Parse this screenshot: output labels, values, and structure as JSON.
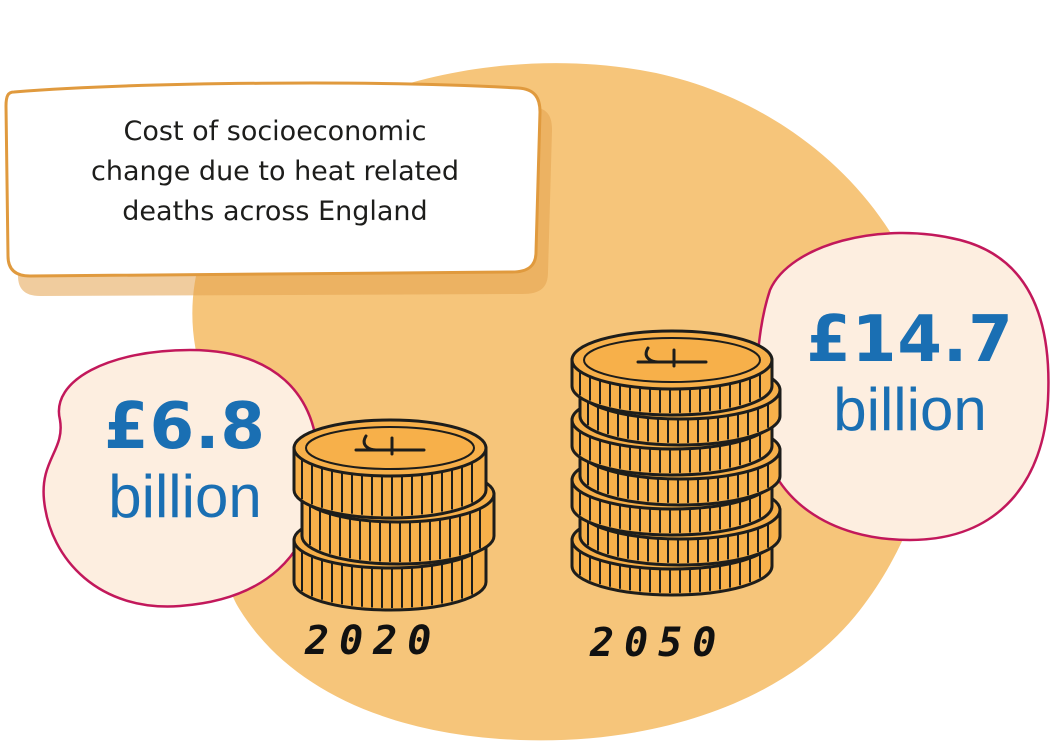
{
  "title": {
    "line1": "Cost of socioeconomic",
    "line2": "change due to heat related",
    "line3": "deaths across England"
  },
  "stacks": [
    {
      "year": "2020",
      "amount": "£6.8",
      "unit": "billion",
      "coins": 3
    },
    {
      "year": "2050",
      "amount": "£14.7",
      "unit": "billion",
      "coins": 7
    }
  ],
  "colors": {
    "blob": "#f6c57a",
    "coin_fill": "#f7b04a",
    "coin_outline": "#1d1d1b",
    "bubble_fill": "#fdeee0",
    "bubble_outline": "#c2185b",
    "amount_text": "#1a6fb3"
  },
  "icons": [
    "pound-coin-icon"
  ]
}
